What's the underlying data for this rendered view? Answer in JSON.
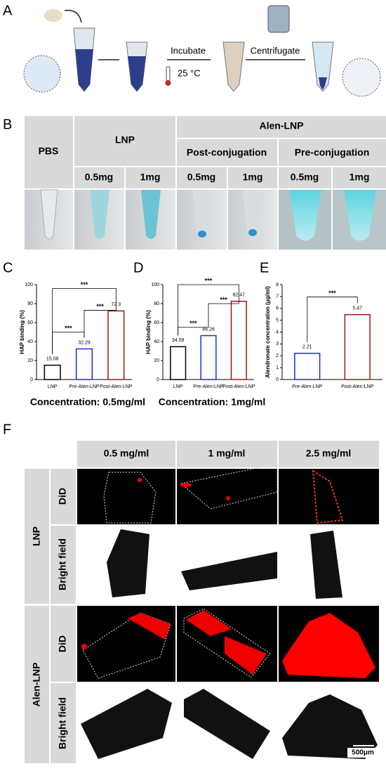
{
  "panel_labels": [
    "A",
    "B",
    "C",
    "D",
    "E",
    "F"
  ],
  "panel_a": {
    "steps": [
      "Incubate",
      "25 °C",
      "Centrifugate"
    ]
  },
  "panel_b": {
    "headers": [
      "PBS",
      "LNP",
      "Alen-LNP",
      "Post-conjugation",
      "Pre-conjugation"
    ],
    "doses": [
      "0.5mg",
      "1mg",
      "0.5mg",
      "1mg",
      "0.5mg",
      "1mg"
    ]
  },
  "chart_data": [
    {
      "type": "bar",
      "y_label": "HAP binding (%)",
      "x_label": "Concentration: 0.5mg/ml",
      "categories": [
        "LNP",
        "Pre-Alen-LNP",
        "Post-Alen-LNP"
      ],
      "values": [
        15.08,
        32.29,
        72.3
      ],
      "colors": [
        "#000000",
        "#1f2ccc",
        "#a31515"
      ],
      "ylim": [
        0,
        100
      ],
      "yticks": [
        0,
        20,
        40,
        60,
        80,
        100
      ],
      "annotations": [
        "***",
        "***",
        "***"
      ]
    },
    {
      "type": "bar",
      "y_label": "HAP binding (%)",
      "x_label": "Concentration: 1mg/ml",
      "categories": [
        "LNP",
        "Pre-Alen-LNP",
        "Post-Alen-LNP"
      ],
      "values": [
        34.59,
        46.26,
        82.47
      ],
      "colors": [
        "#000000",
        "#1f2ccc",
        "#a31515"
      ],
      "ylim": [
        0,
        100
      ],
      "yticks": [
        0,
        20,
        40,
        60,
        80,
        100
      ],
      "annotations": [
        "***",
        "***",
        "***"
      ]
    },
    {
      "type": "bar",
      "y_label": "Alendronate concentration (μg/ml)",
      "categories": [
        "Pre-Alen-LNP",
        "Post-Alen-LNP"
      ],
      "values": [
        2.21,
        5.47
      ],
      "colors": [
        "#1f2ccc",
        "#a31515"
      ],
      "ylim": [
        0,
        8
      ],
      "yticks": [
        0,
        1,
        2,
        3,
        4,
        5,
        6,
        7,
        8
      ],
      "annotations": [
        "***"
      ]
    }
  ],
  "panel_f": {
    "columns": [
      "0.5 mg/ml",
      "1 mg/ml",
      "2.5 mg/ml"
    ],
    "groups": [
      "LNP",
      "Alen-LNP"
    ],
    "rows": [
      "DiD",
      "Bright field",
      "DiD",
      "Bright field"
    ],
    "scale_bar": "500μm"
  }
}
